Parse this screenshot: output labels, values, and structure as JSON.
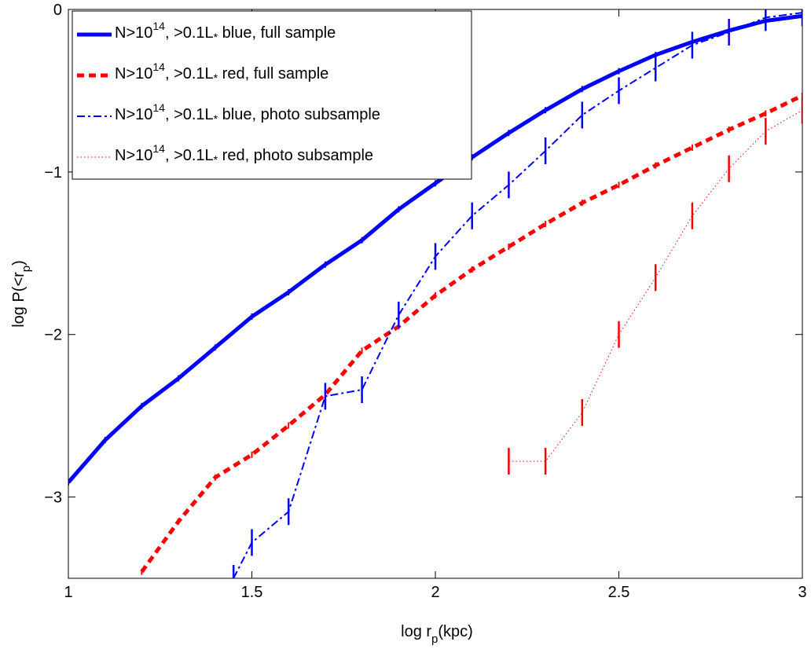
{
  "chart_data": {
    "type": "line",
    "xlabel": "log r",
    "xlabel_sub": "p",
    "xlabel_unit": "(kpc)",
    "ylabel": "log P(<r",
    "ylabel_sub": "p",
    "ylabel_close": ")",
    "xlim": [
      1,
      3
    ],
    "ylim": [
      -3.5,
      0
    ],
    "x_ticks": [
      1,
      1.5,
      2,
      2.5,
      3
    ],
    "x_tick_labels": [
      "1",
      "1.5",
      "2",
      "2.5",
      "3"
    ],
    "y_ticks": [
      -3,
      -2,
      -1,
      0
    ],
    "y_tick_labels": [
      "−3",
      "−2",
      "−1",
      "0"
    ],
    "grid": false,
    "legend_position": "top-left",
    "series": [
      {
        "name": "N>10^14, >0.1L* blue, full sample",
        "legend_prefix": "N>10",
        "legend_sup": "14",
        "legend_mid": ", >0.1L",
        "legend_star": "*",
        "legend_suffix": " blue, full sample",
        "color": "#0000ff",
        "style": "solid",
        "errorbar_style": "small",
        "x": [
          1.0,
          1.1,
          1.2,
          1.3,
          1.4,
          1.5,
          1.6,
          1.7,
          1.8,
          1.9,
          2.0,
          2.1,
          2.2,
          2.3,
          2.4,
          2.5,
          2.6,
          2.7,
          2.8,
          2.9,
          3.0
        ],
        "y": [
          -2.91,
          -2.65,
          -2.44,
          -2.27,
          -2.08,
          -1.89,
          -1.74,
          -1.57,
          -1.42,
          -1.23,
          -1.07,
          -0.91,
          -0.76,
          -0.62,
          -0.49,
          -0.38,
          -0.28,
          -0.2,
          -0.13,
          -0.07,
          -0.04
        ]
      },
      {
        "name": "N>10^14, >0.1L* red, full sample",
        "legend_prefix": "N>10",
        "legend_sup": "14",
        "legend_mid": ", >0.1L",
        "legend_star": "*",
        "legend_suffix": " red, full sample",
        "color": "#ff0000",
        "style": "dashed",
        "errorbar_style": "small",
        "x": [
          1.2,
          1.3,
          1.4,
          1.5,
          1.6,
          1.7,
          1.8,
          1.9,
          2.0,
          2.1,
          2.2,
          2.3,
          2.4,
          2.5,
          2.6,
          2.7,
          2.8,
          2.9,
          3.0
        ],
        "y": [
          -3.46,
          -3.15,
          -2.88,
          -2.74,
          -2.56,
          -2.37,
          -2.1,
          -1.95,
          -1.76,
          -1.6,
          -1.46,
          -1.32,
          -1.19,
          -1.08,
          -0.96,
          -0.85,
          -0.74,
          -0.64,
          -0.53
        ]
      },
      {
        "name": "N>10^14, >0.1L* blue, photo subsample",
        "legend_prefix": "N>10",
        "legend_sup": "14",
        "legend_mid": ", >0.1L",
        "legend_star": "*",
        "legend_suffix": " blue, photo subsample",
        "color": "#0000ff",
        "style": "dashdot",
        "errorbar_style": "large",
        "x": [
          1.45,
          1.5,
          1.6,
          1.7,
          1.8,
          1.9,
          2.0,
          2.1,
          2.2,
          2.3,
          2.4,
          2.5,
          2.6,
          2.7,
          2.8,
          2.9,
          3.0
        ],
        "y": [
          -3.5,
          -3.28,
          -3.09,
          -2.38,
          -2.34,
          -1.88,
          -1.52,
          -1.27,
          -1.08,
          -0.87,
          -0.65,
          -0.5,
          -0.36,
          -0.22,
          -0.14,
          -0.05,
          -0.02
        ]
      },
      {
        "name": "N>10^14, >0.1L* red, photo subsample",
        "legend_prefix": "N>10",
        "legend_sup": "14",
        "legend_mid": ", >0.1L",
        "legend_star": "*",
        "legend_suffix": " red, photo subsample",
        "color": "#ff0000",
        "style": "dotted",
        "errorbar_style": "large",
        "x": [
          2.2,
          2.3,
          2.4,
          2.5,
          2.6,
          2.7,
          2.8,
          2.9,
          3.0
        ],
        "y": [
          -2.78,
          -2.78,
          -2.48,
          -2.0,
          -1.65,
          -1.27,
          -0.98,
          -0.75,
          -0.62
        ]
      }
    ]
  }
}
